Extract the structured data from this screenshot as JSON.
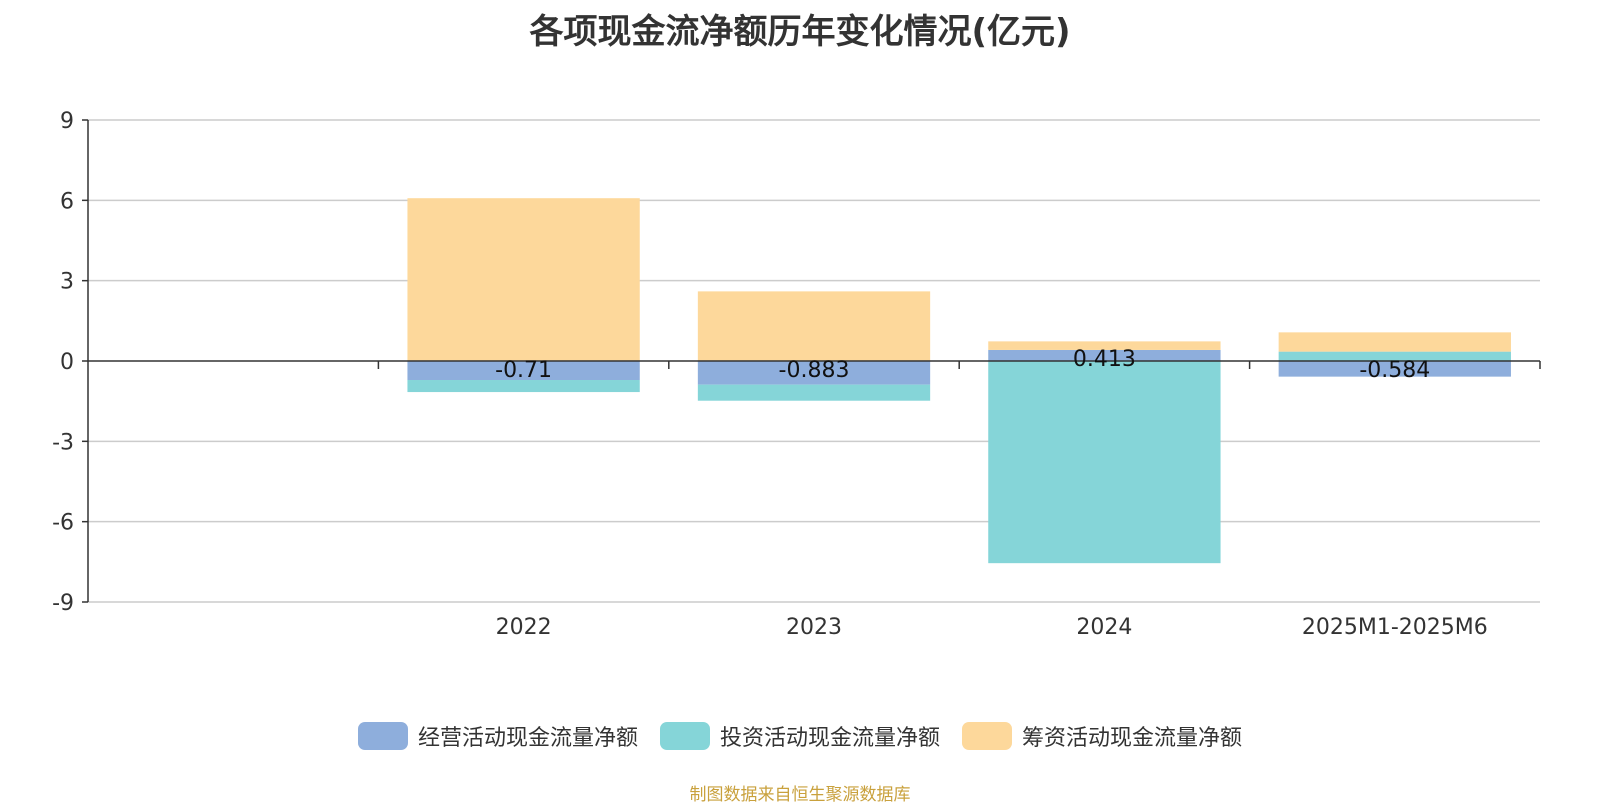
{
  "chart_data": {
    "type": "bar",
    "stacked": true,
    "title": "各项现金流净额历年变化情况(亿元)",
    "categories": [
      "",
      "2022",
      "2023",
      "2024",
      "2025M1-2025M6"
    ],
    "series": [
      {
        "name": "经营活动现金流量净额",
        "color": "#8eaedc",
        "values": [
          null,
          -0.71,
          -0.883,
          0.413,
          -0.584
        ],
        "labels": [
          "",
          "-0.71",
          "-0.883",
          "0.413",
          "-0.584"
        ]
      },
      {
        "name": "投资活动现金流量净额",
        "color": "#85d5d8",
        "values": [
          null,
          -0.45,
          -0.6,
          -7.55,
          0.35
        ]
      },
      {
        "name": "筹资活动现金流量净额",
        "color": "#fdd89b",
        "values": [
          null,
          6.08,
          2.6,
          0.32,
          0.72
        ]
      }
    ],
    "ylim": [
      -9,
      9
    ],
    "yticks": [
      "9",
      "6",
      "3",
      "0",
      "-3",
      "-6",
      "-9"
    ],
    "grid": true,
    "legend_position": "bottom",
    "source": "制图数据来自恒生聚源数据库"
  }
}
